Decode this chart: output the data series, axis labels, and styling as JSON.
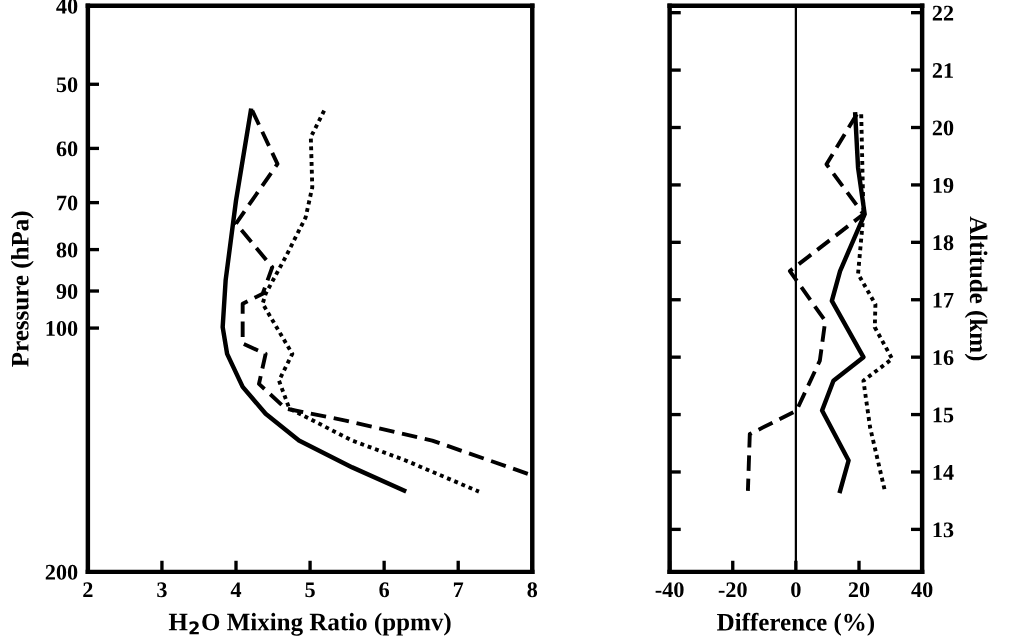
{
  "chart_data": [
    {
      "type": "line",
      "xlabel": "H$_{2}$O Mixing Ratio (ppmv)",
      "ylabel": "Pressure (hPa)",
      "log": "y",
      "xlim": [
        2,
        8
      ],
      "xticks": [
        2,
        3,
        4,
        5,
        6,
        7,
        8
      ],
      "ylim": [
        200,
        40
      ],
      "yticks": [
        40,
        50,
        60,
        70,
        80,
        90,
        100,
        200
      ],
      "grid": false,
      "series": [
        {
          "color": "#000000",
          "line_style": "solid",
          "x": [
            4.2,
            4.0,
            3.86,
            3.82,
            3.88,
            4.09,
            4.4,
            4.85,
            5.57,
            6.27
          ],
          "values": [
            53.9,
            69.6,
            87.3,
            99.7,
            107.6,
            118.2,
            127.6,
            137.7,
            148.6,
            158.7
          ]
        },
        {
          "color": "#000000",
          "line_style": "dashed",
          "x": [
            4.22,
            4.56,
            4.0,
            4.49,
            4.36,
            4.09,
            4.09,
            4.4,
            4.31,
            4.67,
            5.48,
            6.65,
            8.0
          ],
          "values": [
            53.9,
            62.7,
            74.3,
            84.1,
            90.7,
            93.3,
            104.5,
            107.6,
            117.2,
            125.7,
            130.1,
            137.7,
            152.0
          ]
        },
        {
          "color": "#000000",
          "line_style": "dotted",
          "x": [
            5.19,
            5.01,
            5.03,
            4.94,
            4.67,
            4.4,
            4.36,
            4.76,
            4.58,
            4.72,
            5.57,
            6.29,
            7.28
          ],
          "values": [
            53.9,
            58.1,
            67.0,
            73.0,
            81.7,
            90.7,
            93.3,
            107.6,
            116.1,
            125.7,
            137.7,
            145.7,
            159.2
          ]
        }
      ]
    },
    {
      "type": "line",
      "xlabel": "Difference (%)",
      "ylabel": "Altitude (km)",
      "xlim": [
        -40,
        40
      ],
      "xticks": [
        -40,
        -20,
        0,
        20,
        40
      ],
      "ylim": [
        12.26,
        22.12
      ],
      "yticks": [
        13,
        14,
        15,
        16,
        17,
        18,
        19,
        20,
        21,
        22
      ],
      "grid": false,
      "ref_lines": [
        {
          "axis": "x",
          "value": 0,
          "color": "#000000",
          "line_style": "solid"
        }
      ],
      "series": [
        {
          "color": "#000000",
          "line_style": "solid",
          "x": [
            18.8,
            19.7,
            21.8,
            14.0,
            11.4,
            21.4,
            11.9,
            8.3,
            16.7,
            14.0
          ],
          "values": [
            20.23,
            19.3,
            18.49,
            17.5,
            16.98,
            16.0,
            15.59,
            15.07,
            14.2,
            13.67
          ]
        },
        {
          "color": "#000000",
          "line_style": "dashed",
          "x": [
            19.3,
            9.7,
            21.4,
            -1.9,
            9.3,
            7.6,
            0.2,
            -14.6,
            -15.2
          ],
          "values": [
            20.23,
            19.36,
            18.49,
            17.5,
            16.63,
            15.94,
            15.07,
            14.66,
            13.67
          ]
        },
        {
          "color": "#000000",
          "line_style": "dotted",
          "x": [
            20.7,
            21.4,
            19.7,
            25.2,
            25.0,
            30.5,
            21.4,
            23.5,
            28.2
          ],
          "values": [
            20.23,
            18.49,
            17.45,
            16.92,
            16.52,
            15.97,
            15.59,
            14.78,
            13.67
          ]
        }
      ]
    }
  ]
}
